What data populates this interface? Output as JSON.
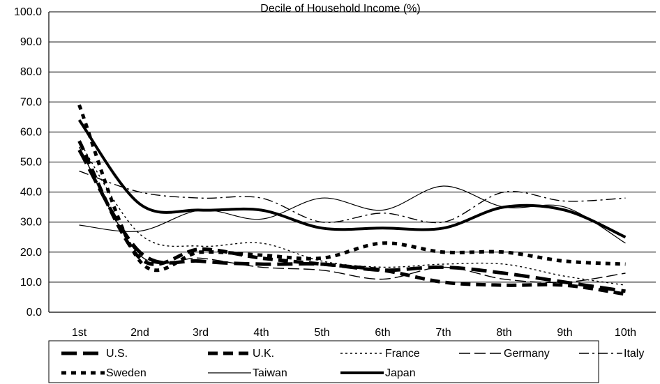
{
  "chart_data": {
    "type": "line",
    "title": "Decile of Household Income (%)",
    "xlabel": "",
    "ylabel": "",
    "ylim": [
      0,
      100
    ],
    "yticks": [
      "0.0",
      "10.0",
      "20.0",
      "30.0",
      "40.0",
      "50.0",
      "60.0",
      "70.0",
      "80.0",
      "90.0",
      "100.0"
    ],
    "categories": [
      "1st",
      "2nd",
      "3rd",
      "4th",
      "5th",
      "6th",
      "7th",
      "8th",
      "9th",
      "10th"
    ],
    "grid": "horizontal",
    "legend_position": "bottom",
    "series": [
      {
        "name": "U.S.",
        "style": "long-dash",
        "values": [
          54,
          20,
          17,
          16,
          16,
          14,
          15,
          13,
          10,
          7
        ]
      },
      {
        "name": "U.K.",
        "style": "dash",
        "values": [
          57,
          18,
          21,
          18,
          16,
          14,
          10,
          9,
          9,
          6
        ]
      },
      {
        "name": "France",
        "style": "dot",
        "values": [
          57,
          26,
          22,
          23,
          17,
          15,
          16,
          16,
          12,
          9
        ]
      },
      {
        "name": "Germany",
        "style": "medium-dash",
        "values": [
          55,
          19,
          18,
          15,
          14,
          11,
          15,
          11,
          10,
          13
        ]
      },
      {
        "name": "Italy",
        "style": "dash-dot",
        "values": [
          47,
          40,
          38,
          38,
          30,
          33,
          30,
          40,
          37,
          38
        ]
      },
      {
        "name": "Sweden",
        "style": "short-dash",
        "values": [
          69,
          17,
          20,
          19,
          18,
          23,
          20,
          20,
          17,
          16
        ]
      },
      {
        "name": "Taiwan",
        "style": "solid-thin",
        "values": [
          29,
          27,
          34,
          31,
          38,
          34,
          42,
          35,
          35,
          23
        ]
      },
      {
        "name": "Japan",
        "style": "solid-thick",
        "values": [
          64,
          36,
          34,
          34,
          28,
          28,
          28,
          35,
          34,
          25
        ]
      }
    ]
  }
}
